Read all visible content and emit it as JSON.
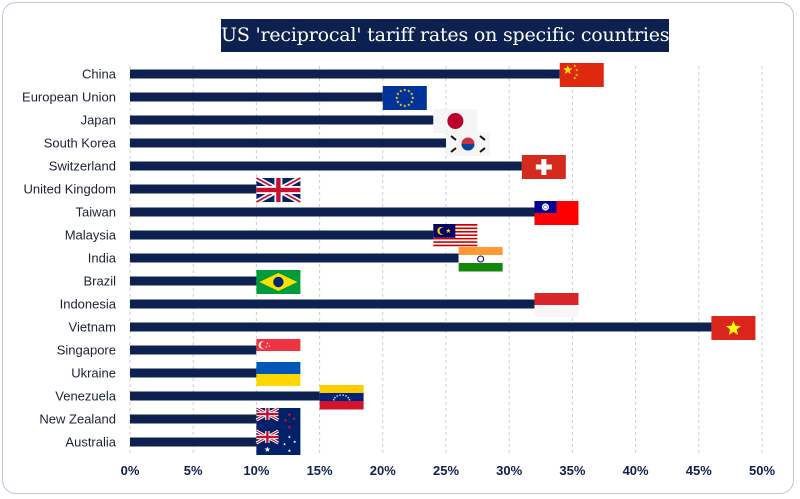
{
  "chart_data": {
    "type": "bar",
    "orientation": "horizontal",
    "title": "US 'reciprocal' tariff rates on specific countries",
    "xlabel": "",
    "ylabel": "",
    "xlim": [
      0,
      50
    ],
    "ticks": [
      "0%",
      "5%",
      "10%",
      "15%",
      "20%",
      "25%",
      "30%",
      "35%",
      "40%",
      "45%",
      "50%"
    ],
    "tick_values": [
      0,
      5,
      10,
      15,
      20,
      25,
      30,
      35,
      40,
      45,
      50
    ],
    "grid": true,
    "legend": "none",
    "bar_color": "#0d2150",
    "categories": [
      "China",
      "European Union",
      "Japan",
      "South Korea",
      "Switzerland",
      "United Kingdom",
      "Taiwan",
      "Malaysia",
      "India",
      "Brazil",
      "Indonesia",
      "Vietnam",
      "Singapore",
      "Ukraine",
      "Venezuela",
      "New Zealand",
      "Australia"
    ],
    "values": [
      34,
      20,
      24,
      25,
      31,
      10,
      32,
      24,
      26,
      10,
      32,
      46,
      10,
      10,
      15,
      10,
      10
    ],
    "flags": [
      "china-flag",
      "eu-flag",
      "japan-flag",
      "south-korea-flag",
      "switzerland-flag",
      "uk-flag",
      "taiwan-flag",
      "malaysia-flag",
      "india-flag",
      "brazil-flag",
      "indonesia-flag",
      "vietnam-flag",
      "singapore-flag",
      "ukraine-flag",
      "venezuela-flag",
      "new-zealand-flag",
      "australia-flag"
    ]
  }
}
